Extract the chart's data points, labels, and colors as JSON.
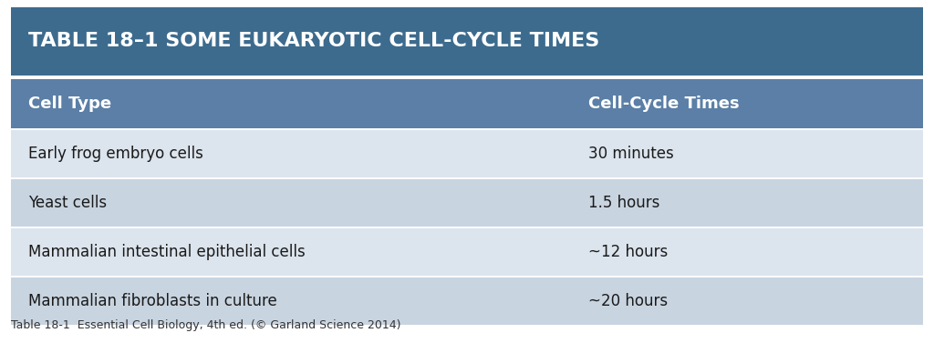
{
  "title": "TABLE 18–1 SOME EUKARYOTIC CELL-CYCLE TIMES",
  "title_bg_color": "#3d6b8e",
  "title_text_color": "#ffffff",
  "header_bg_color": "#5b7fa6",
  "header_text_color": "#ffffff",
  "col1_header": "Cell Type",
  "col2_header": "Cell-Cycle Times",
  "rows": [
    [
      "Early frog embryo cells",
      "30 minutes"
    ],
    [
      "Yeast cells",
      "1.5 hours"
    ],
    [
      "Mammalian intestinal epithelial cells",
      "~12 hours"
    ],
    [
      "Mammalian fibroblasts in culture",
      "~20 hours"
    ]
  ],
  "row_bg_even": "#dce4ed",
  "row_bg_odd": "#c8d4e0",
  "row_text_color": "#1a1a1a",
  "caption": "Table 18-1  Essential Cell Biology, 4th ed. (© Garland Science 2014)",
  "caption_color": "#333333",
  "fig_bg_color": "#ffffff",
  "col_split": 0.615,
  "title_fontsize": 16,
  "header_fontsize": 13,
  "row_fontsize": 12,
  "caption_fontsize": 9
}
